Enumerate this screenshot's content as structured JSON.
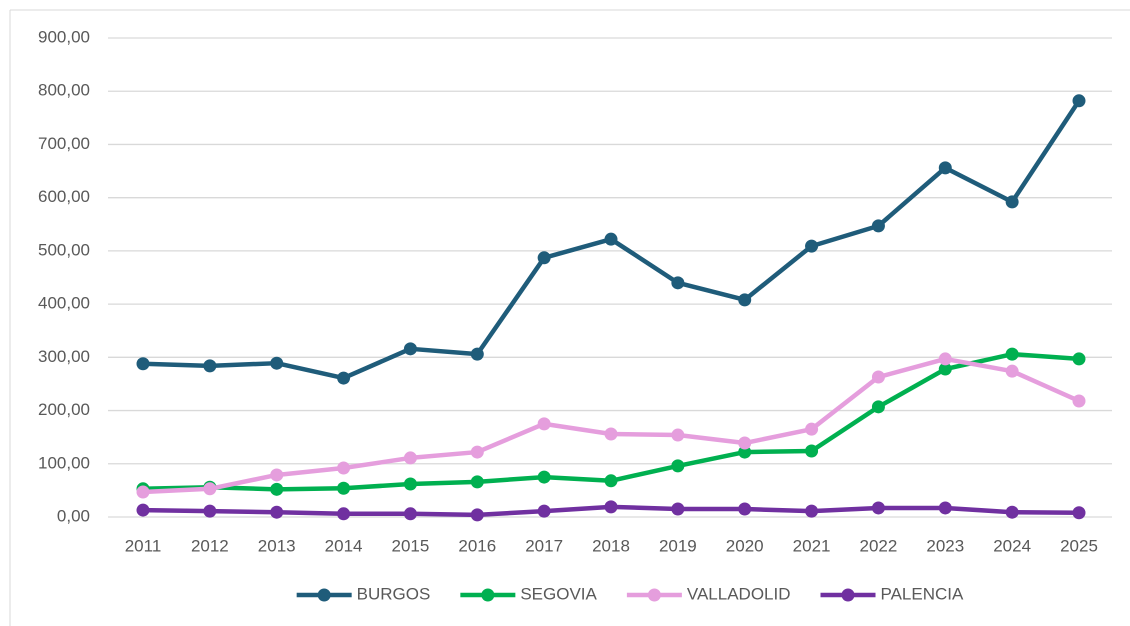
{
  "chart_data": {
    "type": "line",
    "categories": [
      "2011",
      "2012",
      "2013",
      "2014",
      "2015",
      "2016",
      "2017",
      "2018",
      "2019",
      "2020",
      "2021",
      "2022",
      "2023",
      "2024",
      "2025"
    ],
    "series": [
      {
        "name": "BURGOS",
        "color": "#1f5c7a",
        "values": [
          288,
          284,
          289,
          261,
          316,
          306,
          487,
          522,
          440,
          408,
          509,
          547,
          656,
          592,
          782
        ]
      },
      {
        "name": "SEGOVIA",
        "color": "#00b050",
        "values": [
          53,
          56,
          52,
          54,
          62,
          66,
          75,
          68,
          96,
          122,
          124,
          207,
          278,
          306,
          297
        ]
      },
      {
        "name": "VALLADOLID",
        "color": "#e59edd",
        "values": [
          47,
          53,
          79,
          92,
          111,
          122,
          175,
          156,
          154,
          139,
          165,
          263,
          297,
          274,
          218
        ]
      },
      {
        "name": "PALENCIA",
        "color": "#7030a0",
        "values": [
          13,
          11,
          9,
          6,
          6,
          4,
          11,
          19,
          15,
          15,
          11,
          17,
          17,
          9,
          8
        ]
      }
    ],
    "ylim": [
      0,
      900
    ],
    "yticks": [
      {
        "value": 0,
        "label": "0,00"
      },
      {
        "value": 100,
        "label": "100,00"
      },
      {
        "value": 200,
        "label": "200,00"
      },
      {
        "value": 300,
        "label": "300,00"
      },
      {
        "value": 400,
        "label": "400,00"
      },
      {
        "value": 500,
        "label": "500,00"
      },
      {
        "value": 600,
        "label": "600,00"
      },
      {
        "value": 700,
        "label": "700,00"
      },
      {
        "value": 800,
        "label": "800,00"
      },
      {
        "value": 900,
        "label": "900,00"
      }
    ],
    "grid": true,
    "legend": "bottom"
  }
}
